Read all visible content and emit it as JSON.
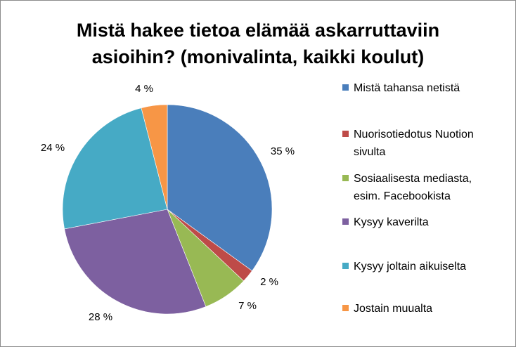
{
  "chart_data": {
    "type": "pie",
    "title_lines": [
      "Mistä hakee tietoa elämää askarruttaviin",
      "asioihin? (monivalinta, kaikki koulut)"
    ],
    "categories": [
      "Mistä tahansa netistä",
      "Nuorisotiedotus Nuotion sivulta",
      "Sosiaalisesta mediasta, esim. Facebookista",
      "Kysyy kaverilta",
      "Kysyy joltain aikuiselta",
      "Jostain muualta"
    ],
    "legend_lines": [
      [
        "Mistä tahansa netistä"
      ],
      [
        "Nuorisotiedotus Nuotion",
        "sivulta"
      ],
      [
        "Sosiaalisesta mediasta,",
        "esim. Facebookista"
      ],
      [
        "Kysyy kaverilta"
      ],
      [
        "Kysyy joltain aikuiselta"
      ],
      [
        "Jostain muualta"
      ]
    ],
    "values": [
      35,
      2,
      7,
      28,
      24,
      4
    ],
    "data_labels": [
      "35 %",
      "2 %",
      "7 %",
      "28 %",
      "24 %",
      "4 %"
    ],
    "colors": [
      "#4a7ebb",
      "#be4b48",
      "#98b954",
      "#7d60a0",
      "#46aac5",
      "#f79646"
    ],
    "start_angle_deg": 0,
    "direction": "clockwise",
    "legend_position": "right"
  }
}
